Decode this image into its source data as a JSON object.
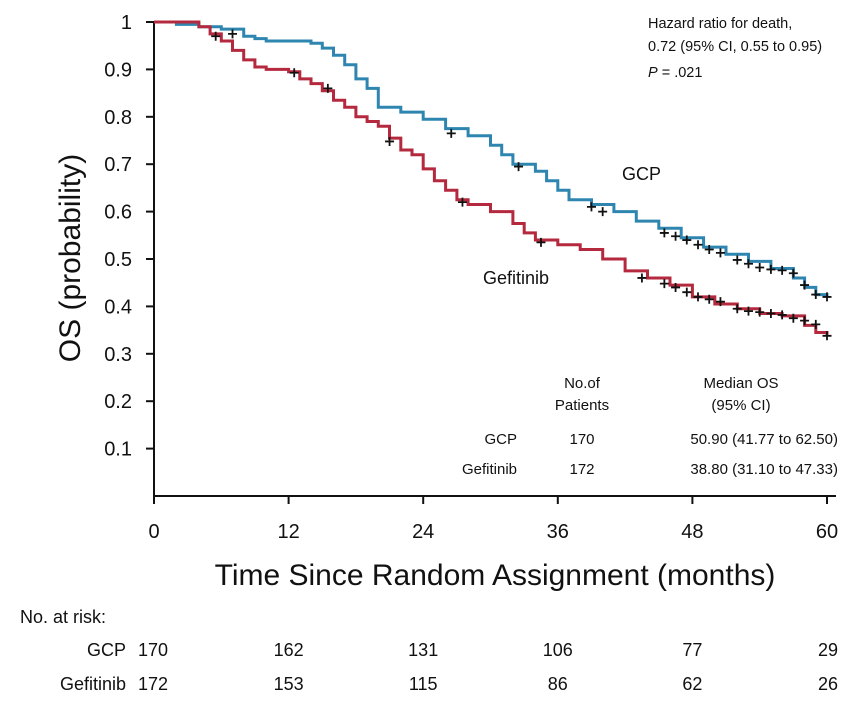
{
  "chart_data": {
    "type": "line",
    "subtype": "kaplan-meier",
    "title": "",
    "xlabel": "Time Since Random Assignment (months)",
    "ylabel": "OS (probability)",
    "xlim": [
      0,
      60
    ],
    "ylim": [
      0,
      1
    ],
    "xticks": [
      "0",
      "12",
      "24",
      "36",
      "48",
      "60"
    ],
    "yticks": [
      "0.1",
      "0.2",
      "0.3",
      "0.4",
      "0.5",
      "0.6",
      "0.7",
      "0.8",
      "0.9",
      "1"
    ],
    "annotation": {
      "line1": "Hazard ratio for death,",
      "line2": "0.72 (95% CI, 0.55 to 0.95)",
      "p_italic": "P",
      "p_value": " = .021"
    },
    "summary_table": {
      "header_patients_1": "No.of",
      "header_patients_2": "Patients",
      "header_median_1": "Median OS",
      "header_median_2": "(95% CI)",
      "rows": [
        {
          "arm": "GCP",
          "patients": "170",
          "median": "50.90 (41.77 to 62.50)"
        },
        {
          "arm": "Gefitinib",
          "patients": "172",
          "median": "38.80 (31.10 to 47.33)"
        }
      ]
    },
    "series": [
      {
        "name": "GCP",
        "label": "GCP",
        "color": "#2e86b0",
        "points": [
          [
            0,
            1
          ],
          [
            2,
            0.995
          ],
          [
            4,
            0.99
          ],
          [
            6,
            0.985
          ],
          [
            8,
            0.97
          ],
          [
            9,
            0.965
          ],
          [
            10,
            0.96
          ],
          [
            12,
            0.96
          ],
          [
            14,
            0.955
          ],
          [
            15,
            0.945
          ],
          [
            16,
            0.93
          ],
          [
            17,
            0.91
          ],
          [
            18,
            0.88
          ],
          [
            19,
            0.86
          ],
          [
            20,
            0.82
          ],
          [
            22,
            0.81
          ],
          [
            24,
            0.795
          ],
          [
            26,
            0.775
          ],
          [
            28,
            0.76
          ],
          [
            30,
            0.74
          ],
          [
            31,
            0.72
          ],
          [
            32,
            0.7
          ],
          [
            34,
            0.685
          ],
          [
            35,
            0.665
          ],
          [
            36,
            0.645
          ],
          [
            37,
            0.625
          ],
          [
            39,
            0.615
          ],
          [
            41,
            0.6
          ],
          [
            43,
            0.58
          ],
          [
            45,
            0.565
          ],
          [
            47,
            0.545
          ],
          [
            49,
            0.525
          ],
          [
            51,
            0.51
          ],
          [
            53,
            0.495
          ],
          [
            55,
            0.48
          ],
          [
            57,
            0.46
          ],
          [
            58,
            0.44
          ],
          [
            59,
            0.425
          ],
          [
            60,
            0.42
          ]
        ],
        "censor_marks": [
          [
            7,
            0.975
          ],
          [
            26.5,
            0.765
          ],
          [
            32.5,
            0.695
          ],
          [
            39,
            0.61
          ],
          [
            40,
            0.6
          ],
          [
            45.5,
            0.555
          ],
          [
            46.5,
            0.548
          ],
          [
            47.5,
            0.54
          ],
          [
            48.5,
            0.53
          ],
          [
            49.5,
            0.52
          ],
          [
            50.5,
            0.513
          ],
          [
            52,
            0.498
          ],
          [
            53,
            0.49
          ],
          [
            54,
            0.482
          ],
          [
            55,
            0.478
          ],
          [
            56,
            0.476
          ],
          [
            57,
            0.47
          ],
          [
            58,
            0.445
          ],
          [
            59,
            0.425
          ],
          [
            60,
            0.42
          ]
        ]
      },
      {
        "name": "Gefitinib",
        "label": "Gefitinib",
        "color": "#b5293e",
        "points": [
          [
            0,
            1
          ],
          [
            4,
            0.99
          ],
          [
            5,
            0.975
          ],
          [
            6,
            0.96
          ],
          [
            7,
            0.94
          ],
          [
            8,
            0.92
          ],
          [
            9,
            0.905
          ],
          [
            10,
            0.9
          ],
          [
            12,
            0.895
          ],
          [
            13,
            0.88
          ],
          [
            14,
            0.87
          ],
          [
            15,
            0.855
          ],
          [
            16,
            0.835
          ],
          [
            17,
            0.82
          ],
          [
            18,
            0.8
          ],
          [
            19,
            0.79
          ],
          [
            20,
            0.78
          ],
          [
            21,
            0.755
          ],
          [
            22,
            0.73
          ],
          [
            23,
            0.72
          ],
          [
            24,
            0.69
          ],
          [
            25,
            0.665
          ],
          [
            26,
            0.645
          ],
          [
            27,
            0.625
          ],
          [
            28,
            0.615
          ],
          [
            30,
            0.6
          ],
          [
            32,
            0.575
          ],
          [
            33,
            0.555
          ],
          [
            34,
            0.54
          ],
          [
            36,
            0.53
          ],
          [
            38,
            0.52
          ],
          [
            40,
            0.5
          ],
          [
            42,
            0.475
          ],
          [
            44,
            0.46
          ],
          [
            46,
            0.445
          ],
          [
            48,
            0.42
          ],
          [
            50,
            0.405
          ],
          [
            52,
            0.395
          ],
          [
            54,
            0.385
          ],
          [
            56,
            0.38
          ],
          [
            58,
            0.36
          ],
          [
            59,
            0.345
          ],
          [
            60,
            0.34
          ]
        ],
        "censor_marks": [
          [
            5.5,
            0.97
          ],
          [
            12.5,
            0.893
          ],
          [
            15.5,
            0.86
          ],
          [
            21,
            0.748
          ],
          [
            27.5,
            0.62
          ],
          [
            34.5,
            0.535
          ],
          [
            43.5,
            0.46
          ],
          [
            45.5,
            0.448
          ],
          [
            46.5,
            0.44
          ],
          [
            47.5,
            0.43
          ],
          [
            48.5,
            0.42
          ],
          [
            49.5,
            0.415
          ],
          [
            50.5,
            0.41
          ],
          [
            52,
            0.395
          ],
          [
            53,
            0.39
          ],
          [
            54,
            0.388
          ],
          [
            55,
            0.385
          ],
          [
            56,
            0.382
          ],
          [
            57,
            0.375
          ],
          [
            58,
            0.37
          ],
          [
            59,
            0.362
          ],
          [
            60,
            0.338
          ]
        ]
      }
    ],
    "risk_table": {
      "title": "No. at risk:",
      "timepoints": [
        0,
        12,
        24,
        36,
        48,
        60
      ],
      "rows": [
        {
          "arm": "GCP",
          "values": [
            "170",
            "162",
            "131",
            "106",
            "77",
            "29"
          ]
        },
        {
          "arm": "Gefitinib",
          "values": [
            "172",
            "153",
            "115",
            "86",
            "62",
            "26"
          ]
        }
      ]
    }
  }
}
